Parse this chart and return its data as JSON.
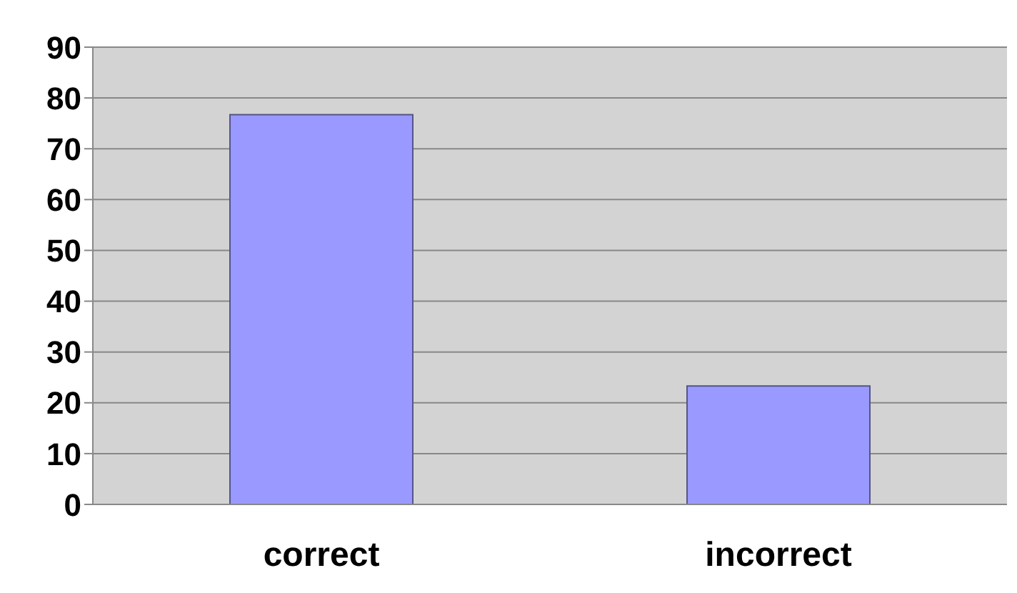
{
  "chart_data": {
    "type": "bar",
    "categories": [
      "correct",
      "incorrect"
    ],
    "values": [
      76.7,
      23.3
    ],
    "color": "#9999ff",
    "ylim": [
      0,
      90
    ],
    "yticks": [
      0,
      10,
      20,
      30,
      40,
      50,
      60,
      70,
      80,
      90
    ],
    "grid": "y",
    "legend": false
  }
}
